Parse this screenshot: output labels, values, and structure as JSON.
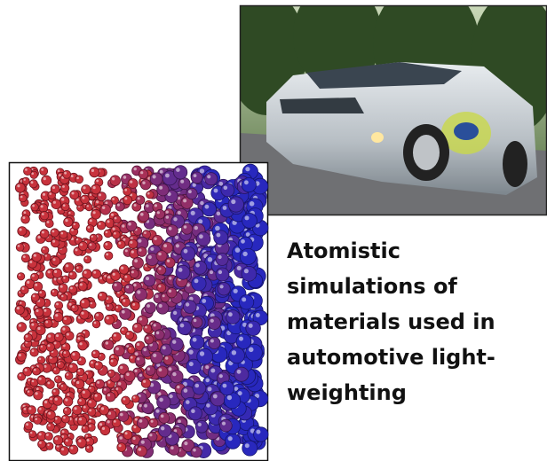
{
  "caption": {
    "lines": [
      "Atomistic",
      "simulations of",
      "materials used in",
      "automotive light-",
      "weighting"
    ]
  }
}
